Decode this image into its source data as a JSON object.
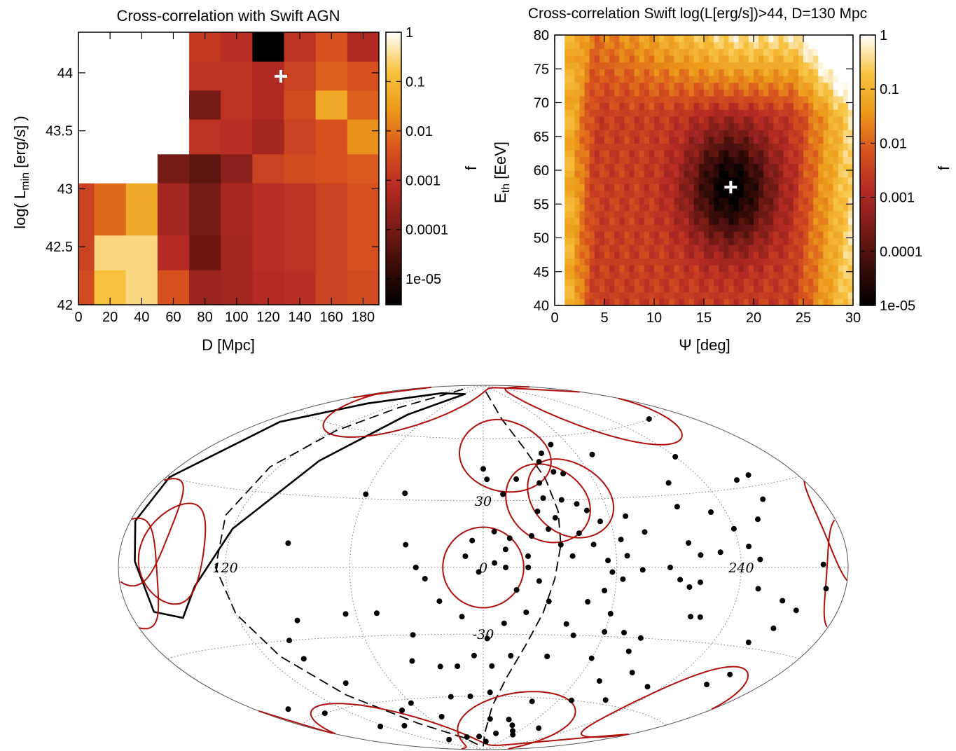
{
  "colors": {
    "scale_stops": [
      "#000000",
      "#3a0c08",
      "#7a1c16",
      "#b52a24",
      "#d8531f",
      "#ec9a1a",
      "#f7c340",
      "#ffffff"
    ],
    "blank": "#ffffff",
    "circle": "#b0100c",
    "curve": "#000000",
    "grid": "#777777",
    "marker": "#ffffff"
  },
  "chart_data": [
    {
      "type": "heatmap",
      "title": "Cross-correlation with Swift AGN",
      "xlabel": "D [Mpc]",
      "ylabel": "log( L_min [erg/s] )",
      "xlim": [
        0,
        190
      ],
      "ylim": [
        42,
        44.35
      ],
      "xticks": [
        "0",
        "20",
        "40",
        "60",
        "80",
        "100",
        "120",
        "140",
        "160",
        "180"
      ],
      "yticks": [
        "42",
        "42.5",
        "43",
        "43.5",
        "44"
      ],
      "colorbar": {
        "label": "f",
        "scale": "log",
        "range": [
          3e-06,
          1
        ],
        "ticks": [
          "1",
          "0.1",
          "0.01",
          "0.001",
          "0.0001",
          "1e-05"
        ]
      },
      "x_edges": [
        0,
        10,
        30,
        50,
        70,
        90,
        110,
        130,
        150,
        170,
        190
      ],
      "y_edges": [
        42,
        42.3,
        42.6,
        42.9,
        43.05,
        43.3,
        43.6,
        43.85,
        44.1,
        44.35
      ],
      "values": [
        [
          0.003,
          0.15,
          0.3,
          0.004,
          0.0003,
          0.0004,
          0.0007,
          0.0008,
          0.002,
          0.003
        ],
        [
          0.002,
          0.3,
          0.3,
          0.0007,
          8e-05,
          0.0004,
          0.0008,
          0.001,
          0.002,
          0.004
        ],
        [
          0.002,
          0.008,
          0.05,
          0.0004,
          0.0001,
          0.0005,
          0.0008,
          0.001,
          0.002,
          0.004
        ],
        [
          0.002,
          0.008,
          0.05,
          0.0004,
          0.0001,
          0.0005,
          0.0008,
          0.001,
          0.002,
          0.004
        ],
        [
          null,
          null,
          null,
          0.0001,
          5e-05,
          0.0002,
          0.002,
          0.003,
          0.004,
          0.005
        ],
        [
          null,
          null,
          null,
          null,
          0.001,
          0.0008,
          0.0004,
          0.002,
          0.004,
          0.02
        ],
        [
          null,
          null,
          null,
          null,
          0.0001,
          0.001,
          0.0006,
          0.003,
          0.05,
          0.006
        ],
        [
          null,
          null,
          null,
          null,
          0.001,
          0.001,
          0.0006,
          0.002,
          0.006,
          0.004
        ],
        [
          null,
          null,
          null,
          null,
          0.0015,
          0.0008,
          3e-06,
          0.001,
          0.004,
          0.0006
        ]
      ],
      "best_fit": {
        "x": 128,
        "y": 43.97
      }
    },
    {
      "type": "heatmap",
      "title": "Cross-correlation Swift log(L[erg/s])>44, D=130 Mpc",
      "xlabel": "Ψ [deg]",
      "ylabel": "E_th [EeV]",
      "xlim": [
        0,
        30
      ],
      "ylim": [
        40,
        80
      ],
      "xticks": [
        "0",
        "5",
        "10",
        "15",
        "20",
        "25",
        "30"
      ],
      "yticks": [
        "40",
        "45",
        "50",
        "55",
        "60",
        "65",
        "70",
        "75",
        "80"
      ],
      "colorbar": {
        "label": "f",
        "scale": "log",
        "range": [
          1e-05,
          1
        ],
        "ticks": [
          "1",
          "0.1",
          "0.01",
          "0.001",
          "0.0001",
          "1e-05"
        ]
      },
      "model": {
        "minimum": {
          "x": 17.7,
          "y": 57.5,
          "value": 1e-05
        },
        "background_log10": -2.5,
        "saturated_above": 1,
        "blank_left_of_x": 2
      },
      "best_fit": {
        "x": 17.7,
        "y": 57.5
      }
    },
    {
      "type": "scatter",
      "projection": "Hammer-Aitoff",
      "gridline_labels": [
        "120",
        "0",
        "240",
        "30",
        "-30"
      ],
      "meridians_deg": [
        120,
        60,
        0,
        -60,
        -120
      ],
      "parallels_deg": [
        60,
        30,
        0,
        -30,
        -60
      ],
      "circles": [
        {
          "lon": 0,
          "lat": 0,
          "radius": 18
        },
        {
          "lon": 150,
          "lat": 5,
          "radius": 18
        },
        {
          "lon": 172,
          "lat": 12,
          "radius": 18
        },
        {
          "lon": 175,
          "lat": -2,
          "radius": 18
        },
        {
          "lon": -14,
          "lat": 52,
          "radius": 18
        },
        {
          "lon": -32,
          "lat": 29,
          "radius": 18
        },
        {
          "lon": -44,
          "lat": 31,
          "radius": 18
        },
        {
          "lon": -40,
          "lat": -75,
          "radius": 18
        },
        {
          "lon": 130,
          "lat": -75,
          "radius": 18
        },
        {
          "lon": -130,
          "lat": 68,
          "radius": 18
        },
        {
          "lon": -150,
          "lat": -55,
          "radius": 18
        },
        {
          "lon": 110,
          "lat": 74,
          "radius": 18
        }
      ],
      "sources": [
        [
          0,
          45
        ],
        [
          -2,
          40
        ],
        [
          -10,
          33
        ],
        [
          -30,
          38
        ],
        [
          -18,
          40
        ],
        [
          -45,
          42
        ],
        [
          -70,
          50
        ],
        [
          -48,
          56
        ],
        [
          -38,
          52
        ],
        [
          -34,
          48
        ],
        [
          -40,
          43
        ],
        [
          -30,
          31
        ],
        [
          -39,
          30
        ],
        [
          -46,
          28
        ],
        [
          -50,
          25
        ],
        [
          -26,
          25
        ],
        [
          -34,
          22
        ],
        [
          -44,
          15
        ],
        [
          -30,
          17
        ],
        [
          -22,
          14
        ],
        [
          -5,
          16
        ],
        [
          -12,
          13
        ],
        [
          5,
          12
        ],
        [
          40,
          33
        ],
        [
          60,
          32
        ],
        [
          35,
          10
        ],
        [
          30,
          0
        ],
        [
          26,
          -5
        ],
        [
          8,
          5
        ],
        [
          2,
          -2
        ],
        [
          -5,
          2
        ],
        [
          -10,
          0
        ],
        [
          -20,
          0
        ],
        [
          -40,
          5
        ],
        [
          -50,
          10
        ],
        [
          -56,
          3
        ],
        [
          -58,
          -2
        ],
        [
          -63,
          -5
        ],
        [
          -72,
          -1
        ],
        [
          -85,
          0
        ],
        [
          -100,
          5
        ],
        [
          -110,
          6
        ],
        [
          -125,
          8
        ],
        [
          -130,
          3
        ],
        [
          -120,
          15
        ],
        [
          -112,
          22
        ],
        [
          -145,
          25
        ],
        [
          -135,
          18
        ],
        [
          -150,
          34
        ],
        [
          -140,
          33
        ],
        [
          -120,
          45
        ],
        [
          -150,
          60
        ],
        [
          -100,
          35
        ],
        [
          -96,
          25
        ],
        [
          -95,
          10
        ],
        [
          -90,
          -5
        ],
        [
          -95,
          -8
        ],
        [
          -100,
          -6
        ],
        [
          -130,
          -8
        ],
        [
          -145,
          -12
        ],
        [
          -155,
          -15
        ],
        [
          -168,
          -7
        ],
        [
          -165,
          1
        ],
        [
          -148,
          -22
        ],
        [
          -140,
          -28
        ],
        [
          -105,
          -20
        ],
        [
          -100,
          -20
        ],
        [
          -145,
          -45
        ],
        [
          -150,
          -40
        ],
        [
          -110,
          -50
        ],
        [
          -95,
          -58
        ],
        [
          -75,
          -50
        ],
        [
          -78,
          -36
        ],
        [
          -80,
          -30
        ],
        [
          -70,
          -28
        ],
        [
          -60,
          -28
        ],
        [
          -55,
          -10
        ],
        [
          -60,
          -20
        ],
        [
          -45,
          -30
        ],
        [
          -40,
          -25
        ],
        [
          -30,
          -15
        ],
        [
          -25,
          -6
        ],
        [
          -15,
          -10
        ],
        [
          -20,
          -20
        ],
        [
          -10,
          -25
        ],
        [
          -15,
          -40
        ],
        [
          -5,
          -45
        ],
        [
          -2,
          -32
        ],
        [
          5,
          -40
        ],
        [
          15,
          -45
        ],
        [
          25,
          -45
        ],
        [
          40,
          -42
        ],
        [
          35,
          -30
        ],
        [
          10,
          -22
        ],
        [
          20,
          -15
        ],
        [
          50,
          -20
        ],
        [
          65,
          -20
        ],
        [
          90,
          -22
        ],
        [
          100,
          -30
        ],
        [
          100,
          -38
        ],
        [
          90,
          -50
        ],
        [
          75,
          -65
        ],
        [
          60,
          -62
        ],
        [
          45,
          -70
        ],
        [
          25,
          -60
        ],
        [
          10,
          -60
        ],
        [
          -8,
          -72
        ],
        [
          -30,
          -72
        ],
        [
          -40,
          -75
        ],
        [
          -50,
          -78
        ],
        [
          -60,
          -80
        ],
        [
          -80,
          -75
        ],
        [
          -25,
          -80
        ],
        [
          10,
          -82
        ],
        [
          -10,
          -85
        ],
        [
          100,
          -72
        ],
        [
          125,
          -70
        ],
        [
          140,
          -60
        ],
        [
          158,
          -55
        ],
        [
          90,
          -82
        ],
        [
          40,
          -82
        ],
        [
          -5,
          -58
        ],
        [
          -40,
          -62
        ],
        [
          -70,
          -60
        ],
        [
          -90,
          -45
        ],
        [
          -60,
          -40
        ],
        [
          -35,
          -40
        ],
        [
          -65,
          5
        ],
        [
          -63,
          12
        ],
        [
          -75,
          15
        ],
        [
          -55,
          20
        ],
        [
          -68,
          22
        ],
        [
          90,
          10
        ],
        [
          -20,
          5
        ],
        [
          -10,
          8
        ],
        [
          -35,
          10
        ],
        [
          -48,
          -15
        ]
      ],
      "solid_contour": [
        [
          170,
          2
        ],
        [
          165,
          -15
        ],
        [
          150,
          -18
        ],
        [
          137,
          -7
        ],
        [
          120,
          15
        ],
        [
          100,
          45
        ],
        [
          85,
          70
        ],
        [
          60,
          84
        ],
        [
          118,
          82
        ],
        [
          150,
          70
        ],
        [
          170,
          55
        ],
        [
          178,
          30
        ],
        [
          177,
          15
        ]
      ],
      "dashed_curve_right": [
        [
          -12,
          86
        ],
        [
          -20,
          70
        ],
        [
          -28,
          55
        ],
        [
          -34,
          40
        ],
        [
          -36,
          25
        ],
        [
          -35,
          10
        ],
        [
          -32,
          -5
        ],
        [
          -28,
          -20
        ],
        [
          -22,
          -35
        ],
        [
          -15,
          -50
        ],
        [
          -8,
          -65
        ],
        [
          -3,
          -80
        ],
        [
          0,
          -88
        ]
      ],
      "dashed_curve_left": [
        [
          108,
          86
        ],
        [
          110,
          72
        ],
        [
          118,
          58
        ],
        [
          125,
          40
        ],
        [
          127,
          20
        ],
        [
          125,
          0
        ],
        [
          120,
          -18
        ],
        [
          112,
          -36
        ],
        [
          100,
          -55
        ],
        [
          80,
          -72
        ],
        [
          50,
          -82
        ],
        [
          15,
          -88
        ]
      ]
    }
  ]
}
